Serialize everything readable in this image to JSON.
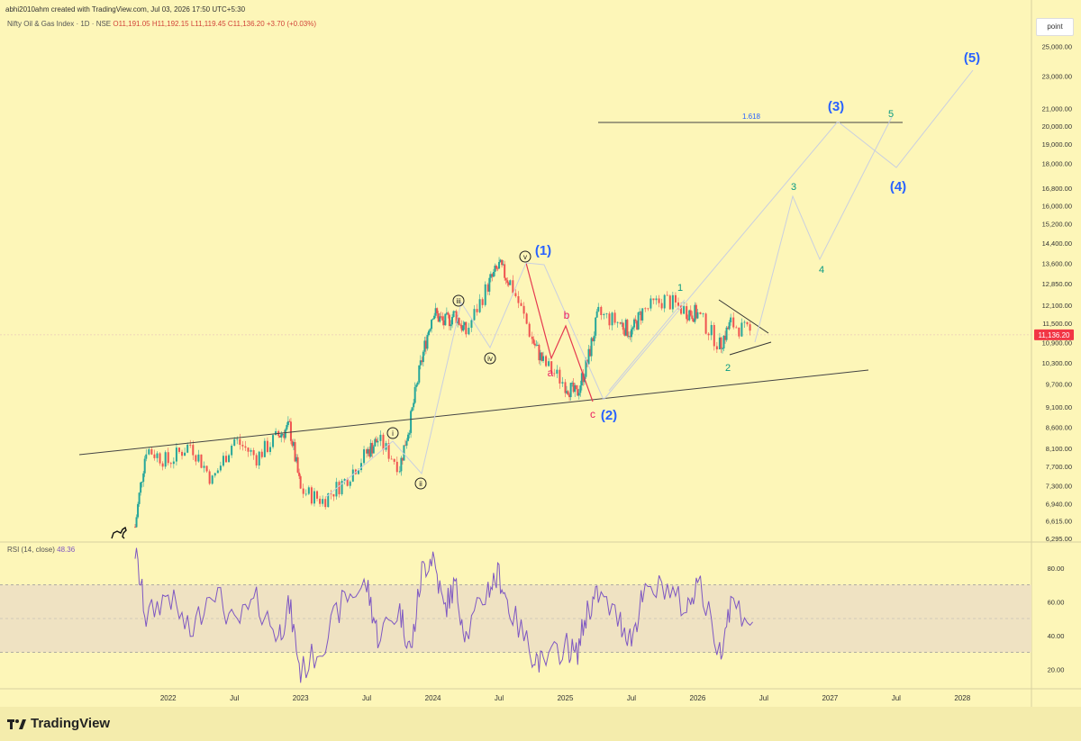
{
  "header": {
    "credit": "abhi2010ahm created with TradingView.com, Jul 03, 2026 17:50 UTC+5:30",
    "symbol": "Nifty Oil & Gas Index · 1D · NSE",
    "ohlc": "O11,191.05 H11,192.15 L11,119.45 C11,136.20 +3.70 (+0.03%)"
  },
  "price_axis": {
    "unit_label": "point",
    "ticks": [
      "25,000.00",
      "23,000.00",
      "21,000.00",
      "20,000.00",
      "19,000.00",
      "18,000.00",
      "16,800.00",
      "16,000.00",
      "15,200.00",
      "14,400.00",
      "13,600.00",
      "12,850.00",
      "12,100.00",
      "11,500.00",
      "10,900.00",
      "10,300.00",
      "9,700.00",
      "9,100.00",
      "8,600.00",
      "8,100.00",
      "7,700.00",
      "7,300.00",
      "6,940.00",
      "6,615.00",
      "6,295.00"
    ],
    "last_price": "11,136.20",
    "last_price_color": "#f23645"
  },
  "rsi": {
    "legend_name": "RSI (14, close)",
    "legend_value": "48.36",
    "ticks": [
      "80.00",
      "60.00",
      "40.00",
      "20.00"
    ],
    "band": [
      30,
      70
    ],
    "midline": 50,
    "color": "#7e57c2"
  },
  "time_axis": {
    "labels": [
      "2022",
      "Jul",
      "2023",
      "Jul",
      "2024",
      "Jul",
      "2025",
      "Jul",
      "2026",
      "Jul",
      "2027",
      "Jul",
      "2028"
    ]
  },
  "wave_labels": {
    "primary": [
      "(1)",
      "(2)",
      "(3)",
      "(4)",
      "(5)"
    ],
    "minor_circled": [
      "i",
      "ii",
      "iii",
      "iv",
      "v"
    ],
    "abc": [
      "a",
      "b",
      "c"
    ],
    "sub": [
      "1",
      "2",
      "3",
      "4",
      "5"
    ],
    "fib": "1.618"
  },
  "colors": {
    "background": "#fdf6b8",
    "up_candle": "#26a69a",
    "down_candle": "#ef5350",
    "primary_label": "#2962ff",
    "abc_label": "#e91e63",
    "sub_label": "#089981",
    "projection_line": "#b8c2d8"
  },
  "footer": {
    "brand": "TradingView"
  },
  "chart_data": {
    "type": "line",
    "title": "Nifty Oil & Gas Index · 1D · NSE",
    "y_scale": "log",
    "ylim": [
      6295,
      25600
    ],
    "x": [
      "2021-10",
      "2021-11",
      "2022-01",
      "2022-03",
      "2022-05",
      "2022-07",
      "2022-09",
      "2022-11",
      "2022-12",
      "2023-01",
      "2023-03",
      "2023-05",
      "2023-07",
      "2023-08",
      "2023-10",
      "2023-11",
      "2023-12",
      "2024-01",
      "2024-02",
      "2024-03",
      "2024-04",
      "2024-06",
      "2024-07",
      "2024-08",
      "2024-10",
      "2024-11",
      "2025-01",
      "2025-02",
      "2025-03",
      "2025-04",
      "2025-06",
      "2025-07",
      "2025-08",
      "2025-10",
      "2025-12",
      "2026-01",
      "2026-03",
      "2026-04",
      "2026-06"
    ],
    "series": [
      {
        "values": [
          6500,
          8100,
          7800,
          8200,
          7400,
          8300,
          7900,
          8400,
          8600,
          7200,
          7000,
          7400,
          8000,
          8300,
          7700,
          8800,
          10400,
          11900,
          11500,
          11800,
          11200,
          12800,
          13500,
          12900,
          11000,
          10300,
          9700,
          9400,
          10300,
          11800,
          11500,
          11200,
          11900,
          12300,
          11900,
          11800,
          10800,
          11500,
          11136
        ]
      }
    ],
    "rsi_series": {
      "name": "RSI (14, close)",
      "values": [
        90,
        50,
        65,
        40,
        70,
        45,
        60,
        40,
        58,
        18,
        35,
        62,
        70,
        40,
        55,
        30,
        78,
        88,
        55,
        70,
        40,
        68,
        76,
        55,
        30,
        22,
        35,
        28,
        55,
        64,
        48,
        38,
        62,
        70,
        55,
        74,
        30,
        60,
        48
      ]
    },
    "wave_points": [
      {
        "label": "(1)",
        "x": "2024-08",
        "y": 13600
      },
      {
        "label": "(2)",
        "x": "2025-03",
        "y": 9400
      },
      {
        "label": "(3)",
        "x": "2026-12",
        "y": 20600
      },
      {
        "label": "(4)",
        "x": "2027-07",
        "y": 17600
      },
      {
        "label": "(5)",
        "x": "2027-12",
        "y": 24000
      }
    ],
    "fib_level": {
      "label": "1.618",
      "y": 20600
    },
    "last_value": 11136.2
  }
}
